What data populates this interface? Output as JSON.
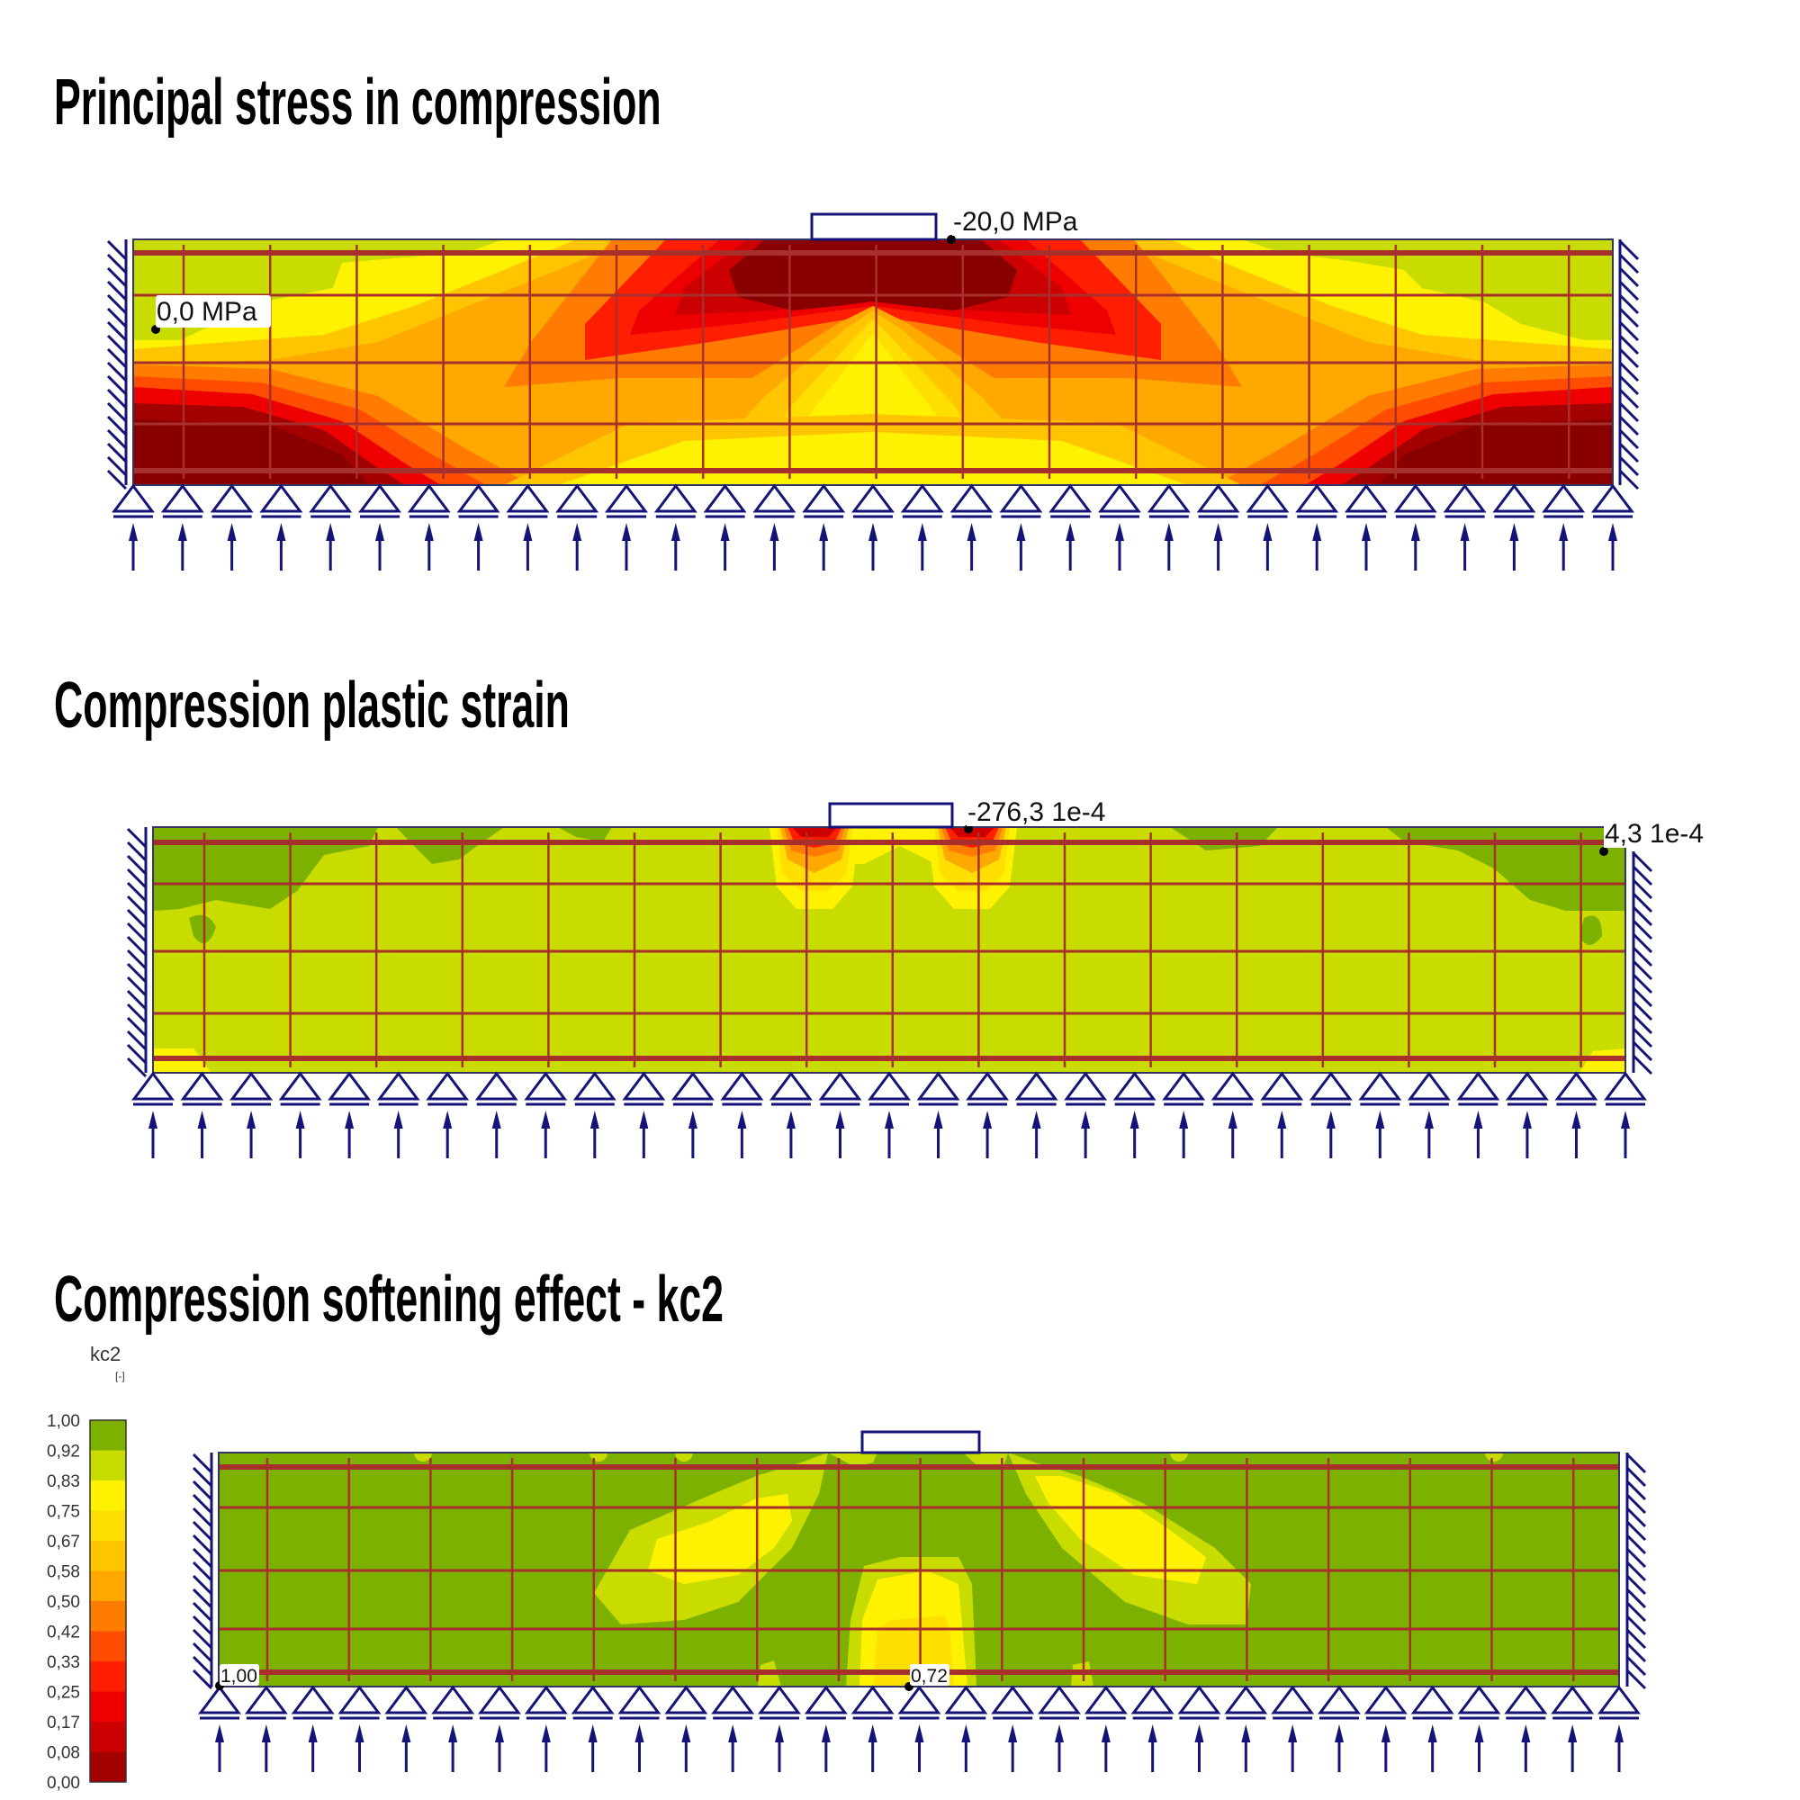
{
  "panels": [
    {
      "title": "Principal stress in compression",
      "max_label": "-20,0 MPa",
      "min_label": "0,0 MPa"
    },
    {
      "title": "Compression plastic strain",
      "max_label": "-276,3 1e-4",
      "min_label": "4,3 1e-4"
    },
    {
      "title": "Compression softening effect - kc2",
      "min_label": "1,00",
      "max_label": "0,72"
    }
  ],
  "legend": {
    "title": "kc2",
    "unit": "[-]",
    "ticks": [
      "1,00",
      "0,92",
      "0,83",
      "0,75",
      "0,67",
      "0,58",
      "0,50",
      "0,42",
      "0,33",
      "0,25",
      "0,17",
      "0,08",
      "0,00"
    ],
    "colors": [
      "#7db100",
      "#c8dc00",
      "#fff200",
      "#ffdf00",
      "#ffc600",
      "#ffa800",
      "#ff7c00",
      "#ff4c00",
      "#ff1e00",
      "#ee0000",
      "#cc0000",
      "#a30000"
    ]
  },
  "colors": {
    "structure": "#141478",
    "rebar": "#a8302c",
    "c_dgreen": "#7db100",
    "c_lgreen": "#c8dc00",
    "c_yellow": "#fff200",
    "c_yellow2": "#ffdf00",
    "c_gold": "#ffc600",
    "c_orange1": "#ffa800",
    "c_orange2": "#ff7c00",
    "c_red1": "#ff4c00",
    "c_red2": "#ff1e00",
    "c_red3": "#ee0000",
    "c_red4": "#cc0000",
    "c_red5": "#a30000",
    "c_red6": "#880000"
  }
}
